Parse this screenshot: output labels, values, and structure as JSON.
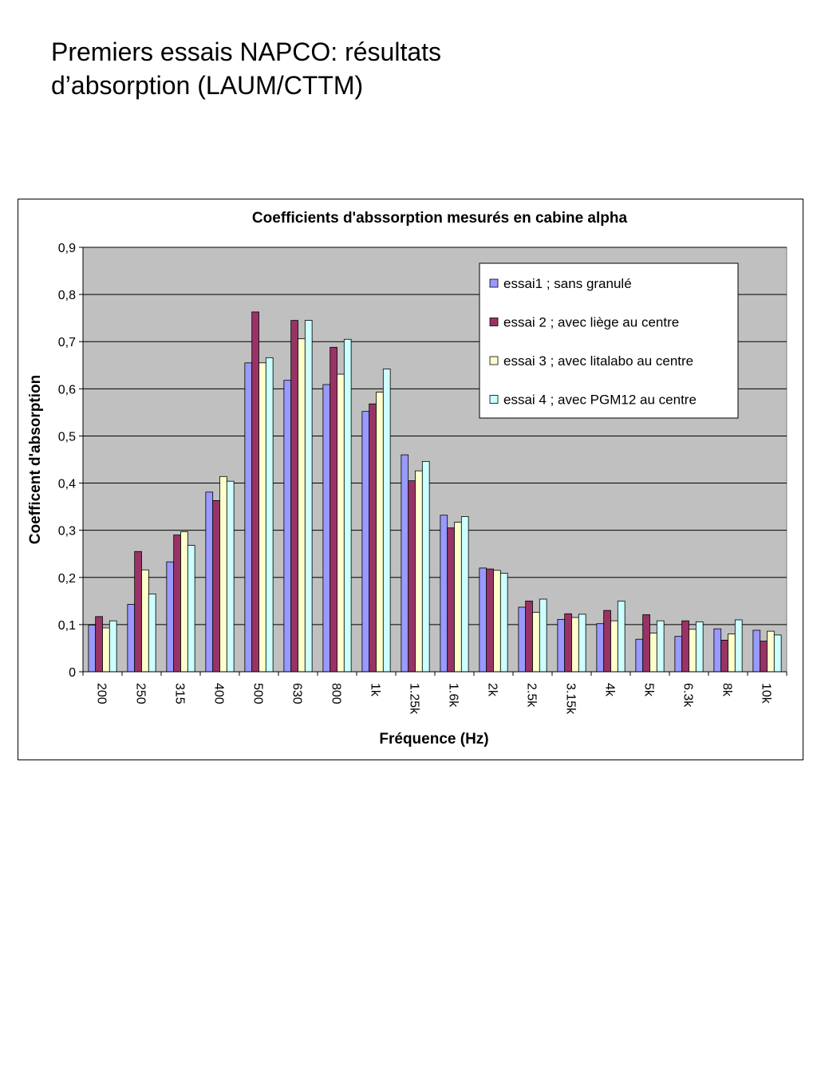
{
  "slide": {
    "title_line1": "Premiers essais NAPCO: résultats",
    "title_line2": "d’absorption (LAUM/CTTM)"
  },
  "chart_data": {
    "type": "bar",
    "title": "Coefficients d'abssorption mesurés en cabine alpha",
    "xlabel": "Fréquence (Hz)",
    "ylabel": "Coefficent d'absorption",
    "ylim": [
      0,
      0.9
    ],
    "yticks": [
      "0",
      "0,1",
      "0,2",
      "0,3",
      "0,4",
      "0,5",
      "0,6",
      "0,7",
      "0,8",
      "0,9"
    ],
    "grid": true,
    "legend_position": "top-right",
    "categories": [
      "200",
      "250",
      "315",
      "400",
      "500",
      "630",
      "800",
      "1k",
      "1.25k",
      "1.6k",
      "2k",
      "2.5k",
      "3.15k",
      "4k",
      "5k",
      "6.3k",
      "8k",
      "10k"
    ],
    "series": [
      {
        "name": "essai1 ;  sans granulé",
        "color": "#9999ff",
        "values": [
          0.099,
          0.143,
          0.233,
          0.381,
          0.655,
          0.618,
          0.609,
          0.552,
          0.46,
          0.332,
          0.22,
          0.137,
          0.111,
          0.102,
          0.069,
          0.075,
          0.091,
          0.088
        ]
      },
      {
        "name": "essai 2 ; avec liège au centre",
        "color": "#993366",
        "values": [
          0.117,
          0.255,
          0.29,
          0.363,
          0.763,
          0.745,
          0.688,
          0.568,
          0.405,
          0.305,
          0.218,
          0.15,
          0.123,
          0.13,
          0.121,
          0.108,
          0.067,
          0.065
        ]
      },
      {
        "name": "essai 3 ; avec litalabo au centre",
        "color": "#ffffcc",
        "values": [
          0.093,
          0.216,
          0.297,
          0.414,
          0.655,
          0.706,
          0.631,
          0.593,
          0.426,
          0.317,
          0.215,
          0.126,
          0.115,
          0.108,
          0.082,
          0.09,
          0.08,
          0.086
        ]
      },
      {
        "name": "essai 4 ; avec PGM12 au centre",
        "color": "#ccffff",
        "values": [
          0.108,
          0.165,
          0.268,
          0.404,
          0.666,
          0.745,
          0.705,
          0.642,
          0.446,
          0.329,
          0.209,
          0.154,
          0.122,
          0.15,
          0.108,
          0.106,
          0.11,
          0.078
        ]
      }
    ]
  }
}
